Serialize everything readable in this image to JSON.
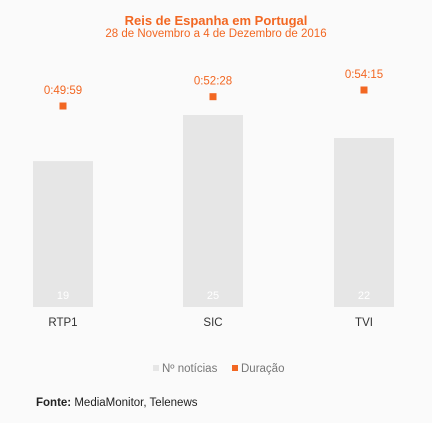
{
  "chart_data": {
    "type": "bar",
    "title": "Reis de Espanha em Portugal",
    "subtitle": "28 de Novembro a 4 de Dezembro de 2016",
    "categories": [
      "RTP1",
      "SIC",
      "TVI"
    ],
    "series": [
      {
        "name": "Nº notícias",
        "type": "bar",
        "color": "#e6e6e6",
        "values": [
          19,
          25,
          22
        ],
        "labels": [
          "19",
          "25",
          "22"
        ]
      },
      {
        "name": "Duração",
        "type": "scatter",
        "color": "#f26722",
        "values": [
          2999,
          3148,
          3255
        ],
        "labels": [
          "0:49:59",
          "0:52:28",
          "0:54:15"
        ]
      }
    ],
    "legend": "bottom-center",
    "grid": false
  },
  "source": {
    "label": "Fonte:",
    "text": "MediaMonitor, Telenews"
  }
}
